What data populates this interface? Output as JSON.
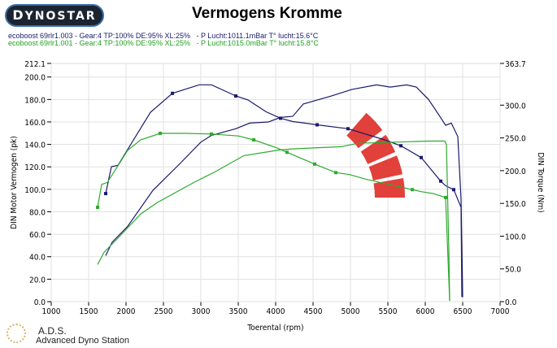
{
  "header": {
    "logo": "DYNOSTAR",
    "title": "Vermogens Kromme"
  },
  "legend": [
    "ecoboost 69rlr1.003 - Gear:4 TP:100% DE:95% XL:25%   - P Lucht:1011.1mBar T° lucht:15.6°C",
    "ecoboost 69rlr1.001 - Gear:4 TP:100% DE:95% XL:25%   - P Lucht:1015.0mBar T° lucht:15.8°C"
  ],
  "footer": {
    "abbr": "A.D.S.",
    "name": "Advanced Dyno Station"
  },
  "chart_data": {
    "type": "line",
    "title": "Vermogens Kromme",
    "xlabel": "Toerental (rpm)",
    "ylabel": "DIN Motor Vermogen (pk)",
    "y2label": "DIN Torque (Nm)",
    "xlim": [
      1000,
      7000
    ],
    "ylim": [
      0,
      212.1
    ],
    "y2lim": [
      0,
      363.7
    ],
    "xticks": [
      1000,
      1500,
      2000,
      2500,
      3000,
      3500,
      4000,
      4500,
      5000,
      5500,
      6000,
      6500,
      7000
    ],
    "yticks": [
      "0.0",
      "20.0",
      "40.0",
      "60.0",
      "80.0",
      "100.0",
      "120.0",
      "140.0",
      "160.0",
      "180.0",
      "200.0",
      "212.1"
    ],
    "y2ticks": [
      "0.0",
      "50.0",
      "100.0",
      "150.0",
      "200.0",
      "250.0",
      "300.0",
      "363.7"
    ],
    "grid": true,
    "colors": {
      "run003": "#1a1a6e",
      "run001": "#2eaa2e",
      "logo": "#e2403a"
    },
    "series": [
      {
        "run": "003",
        "quantity": "power",
        "axis": "left",
        "color": "#1a1a6e",
        "x": [
          1728,
          1815,
          2022,
          2359,
          2707,
          3000,
          3141,
          3467,
          3652,
          3902,
          4065,
          4228,
          4370,
          4739,
          5022,
          5348,
          5533,
          5750,
          5880,
          6043,
          6185,
          6272,
          6348,
          6435,
          6478,
          6500
        ],
        "y": [
          41,
          53,
          67,
          99,
          122,
          142,
          148,
          154,
          159,
          160,
          164,
          165,
          176,
          183,
          189,
          193,
          191,
          193,
          191,
          180,
          166,
          157,
          159,
          147,
          91,
          4
        ],
        "markers": []
      },
      {
        "run": "003",
        "quantity": "torque",
        "axis": "right",
        "color": "#1a1a6e",
        "x": [
          1728,
          1804,
          1891,
          2326,
          2620,
          2978,
          3141,
          3467,
          3630,
          3870,
          4065,
          4228,
          4370,
          4554,
          4967,
          5457,
          5674,
          5946,
          6207,
          6272,
          6380,
          6478,
          6489
        ],
        "y": [
          165,
          206,
          208,
          289,
          318,
          331,
          331,
          314,
          308,
          290,
          280,
          275,
          273,
          270,
          264,
          247,
          238,
          220,
          184,
          177,
          171,
          144,
          7
        ],
        "markers": [
          1728,
          2620,
          3467,
          4065,
          4554,
          4967,
          5674,
          5946,
          6207,
          6380
        ]
      },
      {
        "run": "001",
        "quantity": "power",
        "axis": "left",
        "color": "#2eaa2e",
        "x": [
          1620,
          1707,
          1870,
          2196,
          2413,
          2902,
          3174,
          3576,
          4043,
          4228,
          4880,
          5098,
          5609,
          6043,
          6261,
          6283,
          6315,
          6326
        ],
        "y": [
          33,
          44,
          55,
          78,
          88,
          106,
          115,
          130,
          135,
          136,
          138,
          141,
          142,
          143,
          143,
          140,
          46,
          1
        ],
        "markers": []
      },
      {
        "run": "001",
        "quantity": "torque",
        "axis": "right",
        "color": "#2eaa2e",
        "x": [
          1620,
          1674,
          1750,
          2022,
          2196,
          2457,
          2783,
          3141,
          3500,
          3707,
          4011,
          4152,
          4522,
          4804,
          4989,
          5207,
          5826,
          5946,
          6109,
          6272,
          6326
        ],
        "y": [
          144,
          179,
          182,
          231,
          247,
          257,
          257,
          256,
          253,
          247,
          235,
          228,
          210,
          197,
          194,
          187,
          171,
          168,
          165,
          159,
          1
        ],
        "markers": [
          1620,
          2457,
          3141,
          3707,
          4152,
          4522,
          4804,
          5826,
          6272
        ]
      }
    ]
  }
}
